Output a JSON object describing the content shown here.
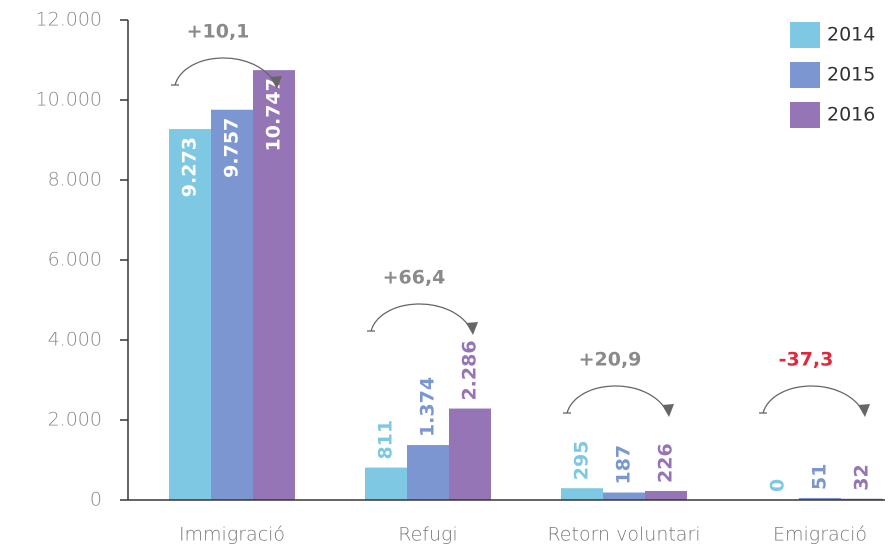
{
  "chart_data": {
    "type": "bar",
    "categories": [
      "Immigració",
      "Refugi",
      "Retorn voluntari",
      "Emigració"
    ],
    "series": [
      {
        "name": "2014",
        "color": "#7ec8e3",
        "values": [
          9273,
          811,
          295,
          0
        ],
        "value_labels": [
          "9.273",
          "811",
          "295",
          "0"
        ]
      },
      {
        "name": "2015",
        "color": "#7b96d0",
        "values": [
          9757,
          1374,
          187,
          51
        ],
        "value_labels": [
          "9.757",
          "1.374",
          "187",
          "51"
        ]
      },
      {
        "name": "2016",
        "color": "#9575b5",
        "values": [
          10747,
          2286,
          226,
          32
        ],
        "value_labels": [
          "10.747",
          "2.286",
          "226",
          "32"
        ]
      }
    ],
    "annotations": [
      {
        "text": "+10,1",
        "color": "#8a8a8a"
      },
      {
        "text": "+66,4",
        "color": "#8a8a8a"
      },
      {
        "text": "+20,9",
        "color": "#8a8a8a"
      },
      {
        "text": "-37,3",
        "color": "#e0283c"
      }
    ],
    "ylim": [
      0,
      12000
    ],
    "yticks": [
      0,
      {
        "value": 2000,
        "label": "2.000"
      },
      {
        "value": 4000,
        "label": "4.000"
      },
      {
        "value": 6000,
        "label": "6.000"
      },
      {
        "value": 8000,
        "label": "8.000"
      },
      {
        "value": 10000,
        "label": "10.000"
      },
      {
        "value": 12000,
        "label": "12.000"
      }
    ],
    "legend": "top-right"
  }
}
